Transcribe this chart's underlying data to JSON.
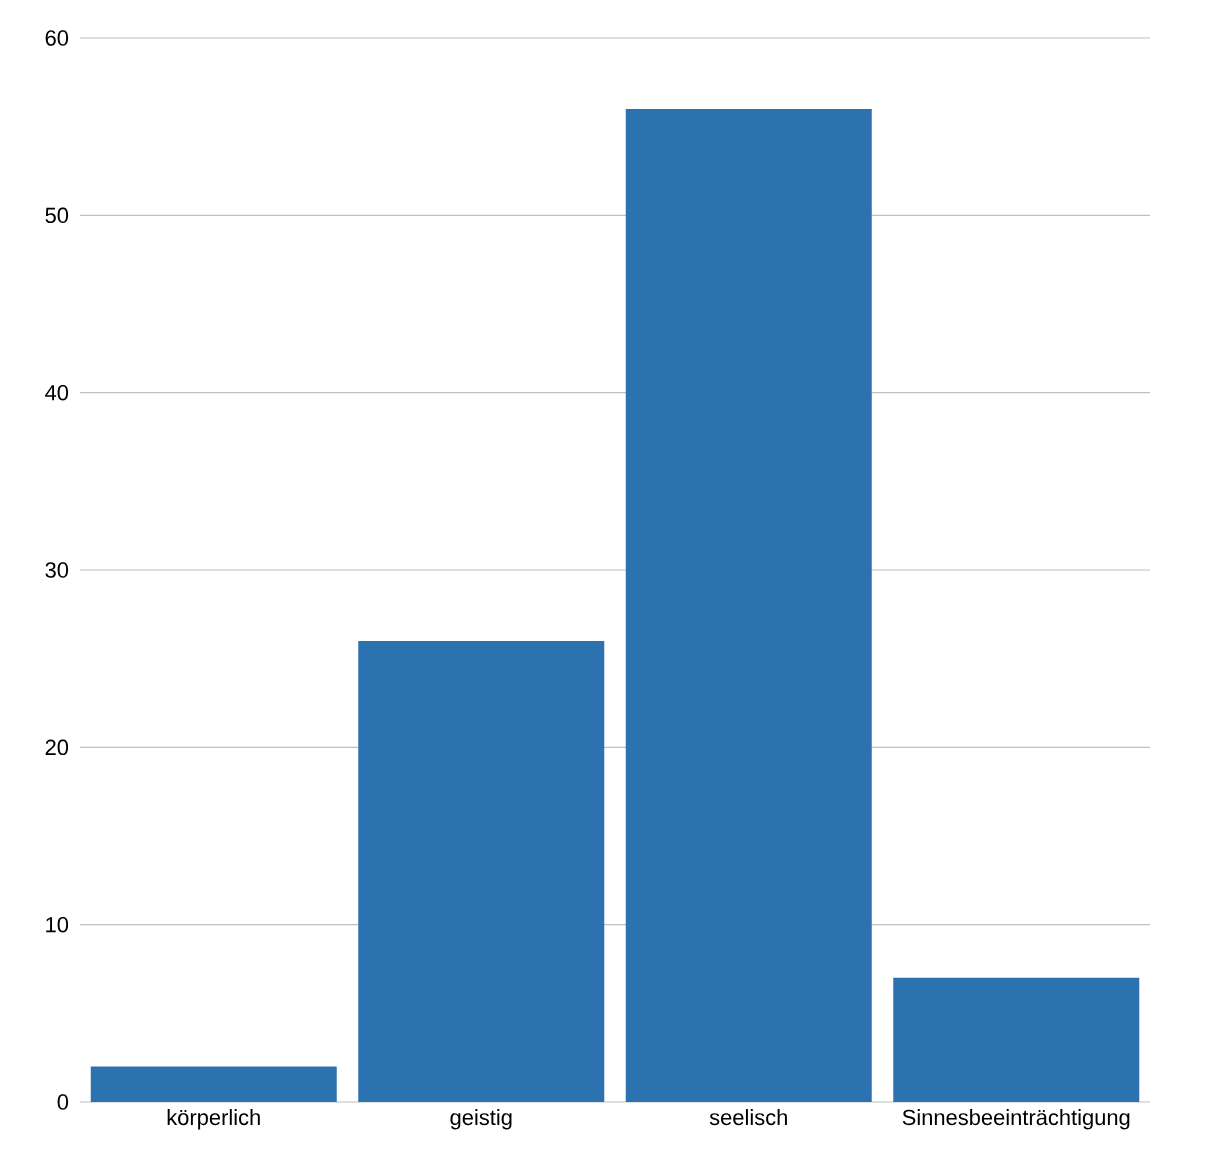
{
  "chart_data": {
    "type": "bar",
    "categories": [
      "körperlich",
      "geistig",
      "seelisch",
      "Sinnesbeeinträchtigung"
    ],
    "values": [
      2,
      26,
      56,
      7
    ],
    "color": "#2c72b0",
    "ylim": [
      0,
      60
    ],
    "yticks": [
      0,
      10,
      20,
      30,
      40,
      50,
      60
    ],
    "grid": "y"
  }
}
